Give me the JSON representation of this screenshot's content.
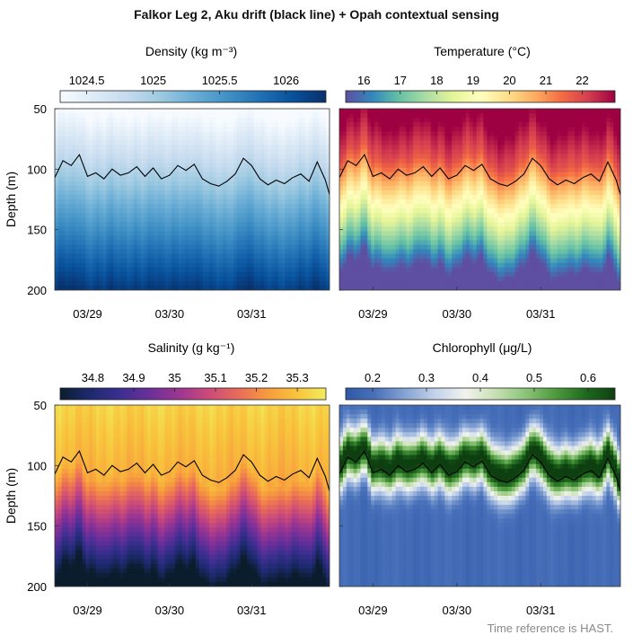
{
  "figure": {
    "title": "Falkor Leg 2, Aku drift (black line) + Opah contextual sensing",
    "footer": "Time reference is HAST.",
    "ylabel": "Depth (m)"
  },
  "chart_data": [
    {
      "type": "heatmap",
      "variable": "density",
      "title": "Density (kg m⁻³)",
      "colorbar_ticks": [
        "1024.5",
        "1025",
        "1025.5",
        "1026"
      ],
      "colorbar_range": [
        1024.3,
        1026.3
      ],
      "colorbar_tick_values": [
        1024.5,
        1025,
        1025.5,
        1026
      ],
      "colormap": [
        "#f7fbff",
        "#deebf7",
        "#c6dbef",
        "#9ecae1",
        "#6baed6",
        "#4292c6",
        "#2171b5",
        "#08519c",
        "#08306b"
      ],
      "ylim": [
        200,
        50
      ],
      "yticks": [
        50,
        100,
        150,
        200
      ],
      "xticks": [
        "03/29",
        "03/30",
        "03/31"
      ],
      "xlim_days": [
        28.6,
        31.95
      ],
      "xtick_days": [
        29,
        30,
        31
      ],
      "grid": false
    },
    {
      "type": "heatmap",
      "variable": "temperature",
      "title": "Temperature (°C)",
      "colorbar_ticks": [
        "16",
        "17",
        "18",
        "19",
        "20",
        "21",
        "22"
      ],
      "colorbar_range": [
        15.5,
        22.9
      ],
      "colorbar_tick_values": [
        16,
        17,
        18,
        19,
        20,
        21,
        22
      ],
      "colormap": [
        "#5e4fa2",
        "#3288bd",
        "#66c2a5",
        "#abdda4",
        "#e6f598",
        "#ffffbf",
        "#fee08b",
        "#fdae61",
        "#f46d43",
        "#d53e4f",
        "#9e0142"
      ],
      "ylim": [
        200,
        50
      ],
      "yticks": [
        50,
        100,
        150,
        200
      ],
      "xticks": [
        "03/29",
        "03/30",
        "03/31"
      ],
      "xlim_days": [
        28.6,
        31.95
      ],
      "xtick_days": [
        29,
        30,
        31
      ],
      "grid": false
    },
    {
      "type": "heatmap",
      "variable": "salinity",
      "title": "Salinity (g kg⁻¹)",
      "colorbar_ticks": [
        "34.8",
        "34.9",
        "35",
        "35.1",
        "35.2",
        "35.3"
      ],
      "colorbar_range": [
        34.72,
        35.37
      ],
      "colorbar_tick_values": [
        34.8,
        34.9,
        35.0,
        35.1,
        35.2,
        35.3
      ],
      "colormap": [
        "#0b1d2d",
        "#1d2a6e",
        "#3a2f8f",
        "#6a2f9a",
        "#9b3592",
        "#c94a7a",
        "#e86a5a",
        "#f79a3e",
        "#f8c33c",
        "#f2ec5c"
      ],
      "ylim": [
        200,
        50
      ],
      "yticks": [
        50,
        100,
        150,
        200
      ],
      "xticks": [
        "03/29",
        "03/30",
        "03/31"
      ],
      "xlim_days": [
        28.6,
        31.95
      ],
      "xtick_days": [
        29,
        30,
        31
      ],
      "grid": false
    },
    {
      "type": "heatmap",
      "variable": "chlorophyll",
      "title": "Chlorophyll (μg/L)",
      "colorbar_ticks": [
        "0.2",
        "0.3",
        "0.4",
        "0.5",
        "0.6"
      ],
      "colorbar_range": [
        0.15,
        0.65
      ],
      "colorbar_tick_values": [
        0.2,
        0.3,
        0.4,
        0.5,
        0.6
      ],
      "colormap": [
        "#2f58a8",
        "#4a72bb",
        "#86a4d4",
        "#c3d3ea",
        "#f2f3ee",
        "#c7e0b4",
        "#8cc47a",
        "#4f9a3e",
        "#1f6a1f",
        "#0e3f10"
      ],
      "ylim": [
        200,
        50
      ],
      "yticks": [
        50,
        100,
        150,
        200
      ],
      "xticks": [
        "03/29",
        "03/30",
        "03/31"
      ],
      "xlim_days": [
        28.6,
        31.95
      ],
      "xtick_days": [
        29,
        30,
        31
      ],
      "grid": false
    }
  ],
  "drift_line": {
    "label": "Aku drift",
    "color": "#000000",
    "x_days": [
      28.6,
      28.7,
      28.8,
      28.9,
      29.0,
      29.1,
      29.2,
      29.3,
      29.4,
      29.5,
      29.6,
      29.7,
      29.8,
      29.9,
      30.0,
      30.1,
      30.2,
      30.3,
      30.4,
      30.5,
      30.6,
      30.7,
      30.8,
      30.9,
      31.0,
      31.1,
      31.2,
      31.3,
      31.4,
      31.5,
      31.6,
      31.7,
      31.8,
      31.9,
      31.95
    ],
    "depth_m": [
      107,
      93,
      97,
      88,
      106,
      103,
      108,
      100,
      105,
      103,
      98,
      106,
      99,
      108,
      105,
      97,
      101,
      96,
      108,
      112,
      114,
      110,
      104,
      91,
      97,
      108,
      113,
      109,
      112,
      107,
      104,
      110,
      94,
      109,
      121
    ]
  }
}
